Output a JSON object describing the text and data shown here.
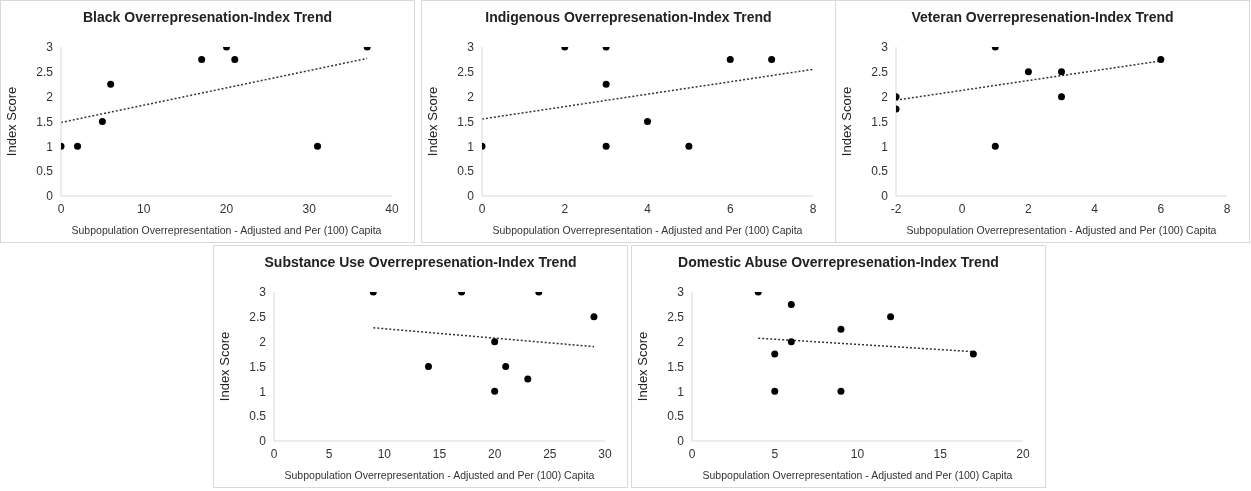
{
  "chart_data": [
    {
      "type": "scatter",
      "title": "Black Overrepresenation-Index Trend",
      "xlabel": "Subpopulation Overrepresentation - Adjusted and Per (100) Capita",
      "ylabel": "Index Score",
      "xlim": [
        0,
        40
      ],
      "xticks": [
        0,
        10,
        20,
        30,
        40
      ],
      "ylim": [
        0,
        3
      ],
      "yticks": [
        0,
        0.5,
        1,
        1.5,
        2,
        2.5,
        3
      ],
      "series": [
        {
          "color": "#000000",
          "marker": "circle",
          "x": [
            0,
            2,
            5,
            6,
            17,
            20,
            21,
            31,
            37
          ],
          "values": [
            1,
            1,
            1.5,
            2.25,
            2.75,
            3,
            2.75,
            1,
            3
          ]
        },
        {
          "type": "line",
          "color": "#333333",
          "marker": "none",
          "line_style": "dotted",
          "x": [
            0,
            37
          ],
          "values": [
            1.48,
            2.77
          ]
        }
      ]
    },
    {
      "type": "scatter",
      "title": "Indigenous Overrepresenation-Index Trend",
      "xlabel": "Subpopulation Overrepresentation - Adjusted and Per (100) Capita",
      "ylabel": "Index Score",
      "xlim": [
        0,
        8
      ],
      "xticks": [
        0,
        2,
        4,
        6,
        8
      ],
      "ylim": [
        0,
        3
      ],
      "yticks": [
        0,
        0.5,
        1,
        1.5,
        2,
        2.5,
        3
      ],
      "series": [
        {
          "color": "#000000",
          "marker": "circle",
          "x": [
            0,
            2,
            3,
            3,
            3,
            4,
            5,
            6,
            7
          ],
          "values": [
            1,
            3,
            3,
            2.25,
            1,
            1.5,
            1,
            2.75,
            2.75
          ]
        },
        {
          "type": "line",
          "color": "#333333",
          "marker": "none",
          "line_style": "dotted",
          "x": [
            0,
            8
          ],
          "values": [
            1.55,
            2.55
          ]
        }
      ]
    },
    {
      "type": "scatter",
      "title": "Veteran Overrepresenation-Index Trend",
      "xlabel": "Subpopulation Overrepresentation - Adjusted and Per (100) Capita",
      "ylabel": "Index Score",
      "xlim": [
        -2,
        8
      ],
      "xticks": [
        -2,
        0,
        2,
        4,
        6,
        8
      ],
      "ylim": [
        0,
        3
      ],
      "yticks": [
        0,
        0.5,
        1,
        1.5,
        2,
        2.5,
        3
      ],
      "series": [
        {
          "color": "#000000",
          "marker": "circle",
          "x": [
            -2,
            -2,
            1,
            1,
            2,
            3,
            3,
            6
          ],
          "values": [
            2,
            1.75,
            3,
            1,
            2.5,
            2.5,
            2,
            2.75
          ]
        },
        {
          "type": "line",
          "color": "#333333",
          "marker": "none",
          "line_style": "dotted",
          "x": [
            -2,
            6
          ],
          "values": [
            1.93,
            2.72
          ]
        }
      ]
    },
    {
      "type": "scatter",
      "title": "Substance Use Overrepresenation-Index Trend",
      "xlabel": "Subpopulation Overrepresentation - Adjusted and Per (100) Capita",
      "ylabel": "Index Score",
      "xlim": [
        0,
        30
      ],
      "xticks": [
        0,
        5,
        10,
        15,
        20,
        25,
        30
      ],
      "ylim": [
        0,
        3
      ],
      "yticks": [
        0,
        0.5,
        1,
        1.5,
        2,
        2.5,
        3
      ],
      "series": [
        {
          "color": "#000000",
          "marker": "circle",
          "x": [
            9,
            14,
            17,
            20,
            20,
            21,
            23,
            24,
            29
          ],
          "values": [
            3,
            1.5,
            3,
            2,
            1,
            1.5,
            1.25,
            3,
            2.5
          ]
        },
        {
          "type": "line",
          "color": "#333333",
          "marker": "none",
          "line_style": "dotted",
          "x": [
            9,
            29
          ],
          "values": [
            2.28,
            1.9
          ]
        }
      ]
    },
    {
      "type": "scatter",
      "title": "Domestic Abuse Overrepresenation-Index Trend",
      "xlabel": "Subpopulation Overrepresentation - Adjusted and Per (100) Capita",
      "ylabel": "Index Score",
      "xlim": [
        0,
        20
      ],
      "xticks": [
        0,
        5,
        10,
        15,
        20
      ],
      "ylim": [
        0,
        3
      ],
      "yticks": [
        0,
        0.5,
        1,
        1.5,
        2,
        2.5,
        3
      ],
      "series": [
        {
          "color": "#000000",
          "marker": "circle",
          "x": [
            4,
            5,
            5,
            6,
            6,
            9,
            9,
            12,
            17
          ],
          "values": [
            3,
            1.75,
            1,
            2.75,
            2,
            2.25,
            1,
            2.5,
            1.75
          ]
        },
        {
          "type": "line",
          "color": "#333333",
          "marker": "none",
          "line_style": "dotted",
          "x": [
            4,
            17
          ],
          "values": [
            2.07,
            1.8
          ]
        }
      ]
    }
  ]
}
